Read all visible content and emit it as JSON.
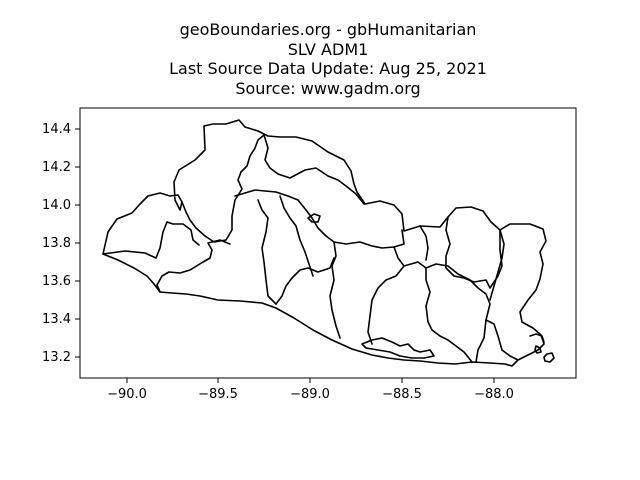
{
  "title": {
    "line1": "geoBoundaries.org - gbHumanitarian",
    "line2": "SLV ADM1",
    "line3": "Last Source Data Update: Aug 25, 2021",
    "line4": "Source: www.gadm.org"
  },
  "chart_data": {
    "type": "map",
    "country": "SLV",
    "admin_level": "ADM1",
    "xlim": [
      -90.25,
      -87.55
    ],
    "ylim": [
      13.1,
      14.52
    ],
    "x_ticks": [
      -90.0,
      -89.5,
      -89.0,
      -88.5,
      -88.0
    ],
    "x_tick_labels": [
      "−90.0",
      "−89.5",
      "−89.0",
      "−88.5",
      "−88.0"
    ],
    "y_ticks": [
      13.2,
      13.4,
      13.6,
      13.8,
      14.0,
      14.2,
      14.4
    ],
    "y_tick_labels": [
      "13.2",
      "13.4",
      "13.6",
      "13.8",
      "14.0",
      "14.2",
      "14.4"
    ],
    "grid": false,
    "line_color": "#000000"
  }
}
